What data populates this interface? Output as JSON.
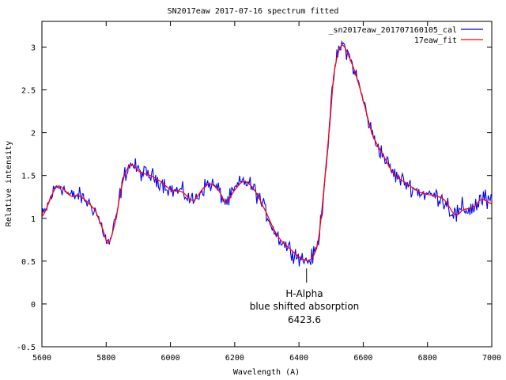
{
  "chart_data": {
    "type": "line",
    "title": "SN2017eaw 2017-07-16 spectrum fitted",
    "xlabel": "Wavelength (A)",
    "ylabel": "Relative intensity",
    "xlim": [
      5600,
      7000
    ],
    "ylim": [
      -0.5,
      3.3
    ],
    "grid": false,
    "legend_position": "top-right",
    "x_ticks": [
      5600,
      5800,
      6000,
      6200,
      6400,
      6600,
      6800,
      7000
    ],
    "x_tick_labels": [
      "5600",
      "5800",
      "6000",
      "6200",
      "6400",
      "6600",
      "6800",
      "7000"
    ],
    "y_ticks": [
      -0.5,
      0,
      0.5,
      1,
      1.5,
      2,
      2.5,
      3
    ],
    "y_tick_labels": [
      "-0.5",
      "0",
      "0.5",
      "1",
      "1.5",
      "2",
      "2.5",
      "3"
    ],
    "series": [
      {
        "name": "_sn2017eaw_201707160105_cal",
        "color": "#0000ff",
        "derived_from": "17eaw_fit",
        "noise_amplitude": 0.06,
        "sample_step": 3
      },
      {
        "name": "17eaw_fit",
        "color": "#ff0000",
        "x": [
          5600,
          5647,
          5691,
          5716,
          5765,
          5790,
          5807,
          5831,
          5843,
          5856,
          5876,
          5905,
          5937,
          5969,
          6003,
          6035,
          6072,
          6102,
          6126,
          6151,
          6173,
          6200,
          6228,
          6257,
          6285,
          6331,
          6373,
          6414,
          6439,
          6459,
          6473,
          6483,
          6496,
          6508,
          6523,
          6537,
          6559,
          6579,
          6604,
          6628,
          6663,
          6695,
          6737,
          6779,
          6828,
          6853,
          6887,
          6911,
          6943,
          6968,
          7000
        ],
        "y": [
          1.02,
          1.37,
          1.26,
          1.26,
          1.1,
          0.87,
          0.71,
          0.99,
          1.27,
          1.49,
          1.63,
          1.54,
          1.5,
          1.43,
          1.33,
          1.31,
          1.21,
          1.35,
          1.4,
          1.32,
          1.19,
          1.33,
          1.43,
          1.35,
          1.16,
          0.81,
          0.64,
          0.52,
          0.53,
          0.71,
          1.15,
          1.58,
          2.1,
          2.66,
          2.94,
          3.02,
          2.86,
          2.65,
          2.32,
          1.98,
          1.73,
          1.52,
          1.4,
          1.3,
          1.26,
          1.21,
          1.04,
          1.1,
          1.13,
          1.22,
          1.17
        ]
      }
    ],
    "annotation": {
      "lines": [
        "H-Alpha",
        "blue shifted absorption",
        "6423.6"
      ],
      "x": 6423.6
    }
  }
}
